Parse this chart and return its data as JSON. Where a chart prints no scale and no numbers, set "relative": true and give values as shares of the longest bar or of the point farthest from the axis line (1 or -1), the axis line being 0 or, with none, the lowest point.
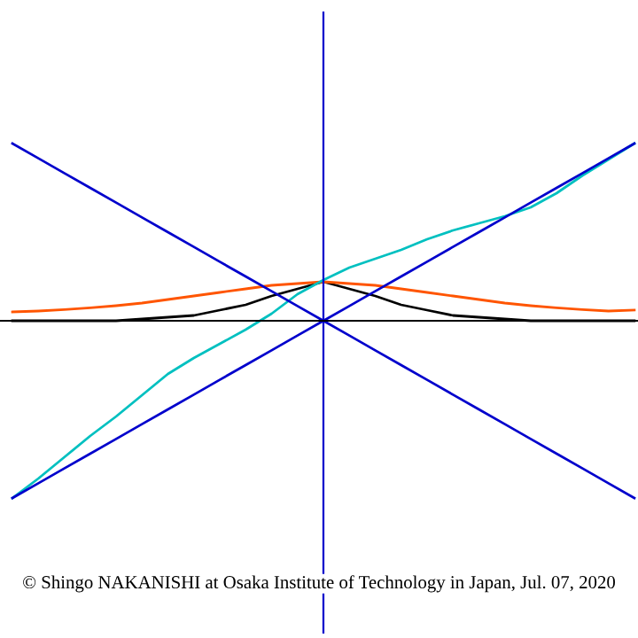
{
  "chart_data": {
    "type": "line",
    "relative": true,
    "legend": false,
    "marker": "none",
    "line_style": "solid",
    "annotations": [
      "© Shingo NAKANISHI at Osaka Institute of Technology in Japan, Jul. 07, 2020"
    ],
    "categories": [
      null,
      null,
      null,
      null,
      null,
      null,
      null,
      null,
      null,
      null,
      null,
      null,
      null,
      null,
      null,
      null,
      null,
      null,
      null,
      null,
      null,
      null,
      null,
      null,
      null
    ],
    "series": [
      {
        "color": "#000000",
        "values": [
          0,
          0,
          0,
          0,
          0,
          0.01,
          0.02,
          0.03,
          0.06,
          0.09,
          0.14,
          0.18,
          0.22,
          0.18,
          0.14,
          0.09,
          0.06,
          0.03,
          0.02,
          0.01,
          0,
          0,
          0,
          0,
          0
        ]
      },
      {
        "color": "#ff5500",
        "values": [
          0.05,
          0.055,
          0.063,
          0.073,
          0.085,
          0.1,
          0.12,
          0.14,
          0.16,
          0.18,
          0.2,
          0.21,
          0.22,
          0.21,
          0.2,
          0.18,
          0.16,
          0.14,
          0.12,
          0.1,
          0.085,
          0.073,
          0.063,
          0.055,
          0.06
        ]
      },
      {
        "color": "#00c0c0",
        "values": [
          -1,
          -0.89,
          -0.77,
          -0.65,
          -0.54,
          -0.42,
          -0.3,
          -0.21,
          -0.13,
          -0.05,
          0.04,
          0.15,
          0.23,
          0.3,
          0.35,
          0.4,
          0.46,
          0.51,
          0.55,
          0.59,
          0.64,
          0.72,
          0.82,
          0.91,
          1
        ]
      },
      {
        "color": "#0000cc",
        "values": [
          -1,
          -0.917,
          -0.833,
          -0.75,
          -0.667,
          -0.583,
          -0.5,
          -0.417,
          -0.333,
          -0.25,
          -0.167,
          -0.083,
          0,
          0.083,
          0.167,
          0.25,
          0.333,
          0.417,
          0.5,
          0.583,
          0.667,
          0.75,
          0.833,
          0.917,
          1
        ]
      },
      {
        "color": "#0000cc",
        "values": [
          1,
          0.917,
          0.833,
          0.75,
          0.667,
          0.583,
          0.5,
          0.417,
          0.333,
          0.25,
          0.167,
          0.083,
          0,
          -0.083,
          -0.167,
          -0.25,
          -0.333,
          -0.417,
          -0.5,
          -0.583,
          -0.667,
          -0.75,
          -0.833,
          -0.917,
          -1
        ]
      }
    ]
  }
}
